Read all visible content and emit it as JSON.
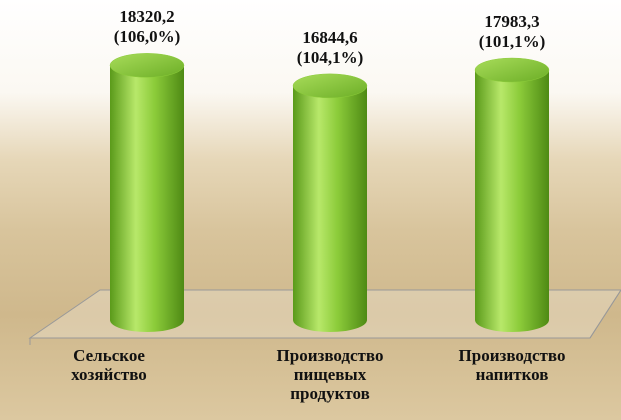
{
  "chart_data": {
    "type": "cylinder-bar",
    "categories": [
      "Сельское хозяйство",
      "Производство пищевых продуктов",
      "Производство напитков"
    ],
    "values": [
      18320.2,
      16844.6,
      17983.3
    ],
    "value_labels": [
      "18320,2",
      "16844,6",
      "17983,3"
    ],
    "growth_labels": [
      "(106,0%)",
      "(104,1%)",
      "(101,1%)"
    ],
    "color": "#8ccc3a"
  }
}
